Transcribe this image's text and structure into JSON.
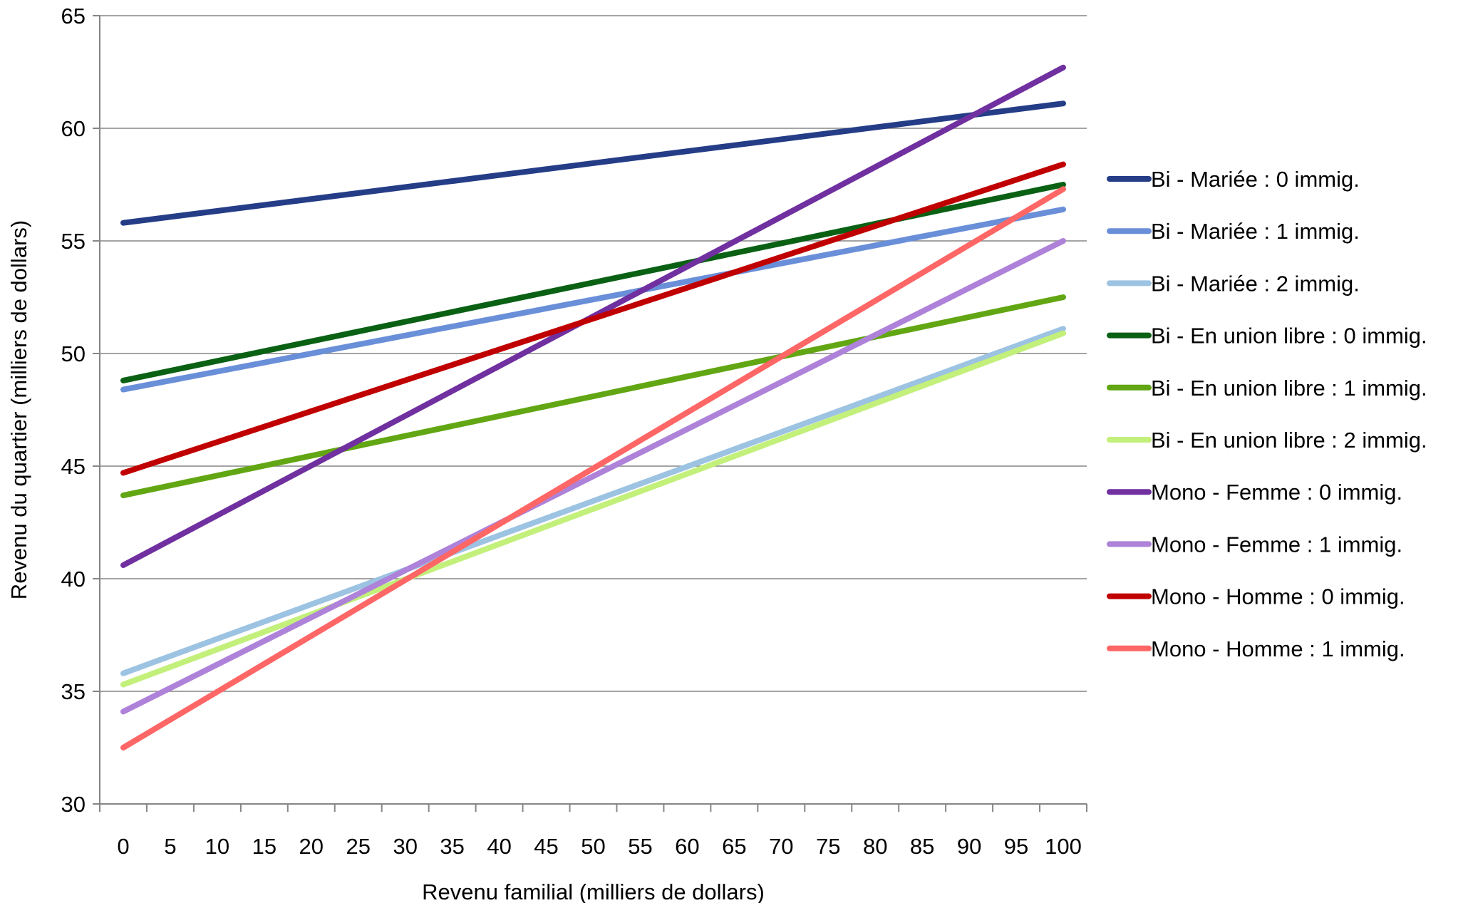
{
  "chart_data": {
    "type": "line",
    "title": "",
    "xlabel": "Revenu familial (milliers de dollars)",
    "ylabel": "Revenu du quartier (milliers de dollars)",
    "xlim": [
      0,
      100
    ],
    "ylim": [
      30,
      65
    ],
    "x_ticks": [
      0,
      5,
      10,
      15,
      20,
      25,
      30,
      35,
      40,
      45,
      50,
      55,
      60,
      65,
      70,
      75,
      80,
      85,
      90,
      95,
      100
    ],
    "y_ticks": [
      30,
      35,
      40,
      45,
      50,
      55,
      60,
      65
    ],
    "grid": "horizontal",
    "legend_position": "right",
    "series": [
      {
        "name": "Bi -  Mariée : 0 immig.",
        "color": "#253D87",
        "x": [
          0,
          100
        ],
        "values": [
          55.8,
          61.1
        ]
      },
      {
        "name": "Bi -  Mariée : 1 immig.",
        "color": "#6A8FD9",
        "x": [
          0,
          100
        ],
        "values": [
          48.4,
          56.4
        ]
      },
      {
        "name": "Bi -  Mariée : 2 immig.",
        "color": "#9DC3E2",
        "x": [
          0,
          100
        ],
        "values": [
          35.8,
          51.1
        ]
      },
      {
        "name": "Bi -  En union libre : 0 immig.",
        "color": "#0A6114",
        "x": [
          0,
          100
        ],
        "values": [
          48.8,
          57.5
        ]
      },
      {
        "name": "Bi -  En union libre : 1 immig.",
        "color": "#62A713",
        "x": [
          0,
          100
        ],
        "values": [
          43.7,
          52.5
        ]
      },
      {
        "name": "Bi -  En union libre : 2 immig.",
        "color": "#C2F07A",
        "x": [
          0,
          100
        ],
        "values": [
          35.3,
          50.9
        ]
      },
      {
        "name": "Mono -  Femme : 0 immig.",
        "color": "#7030A0",
        "x": [
          0,
          100
        ],
        "values": [
          40.6,
          62.7
        ]
      },
      {
        "name": "Mono -  Femme : 1 immig.",
        "color": "#AE82D9",
        "x": [
          0,
          100
        ],
        "values": [
          34.1,
          55.0
        ]
      },
      {
        "name": "Mono -  Homme : 0 immig.",
        "color": "#C00000",
        "x": [
          0,
          100
        ],
        "values": [
          44.7,
          58.4
        ]
      },
      {
        "name": "Mono -  Homme : 1 immig.",
        "color": "#FF6666",
        "x": [
          0,
          100
        ],
        "values": [
          32.5,
          57.3
        ]
      }
    ]
  }
}
